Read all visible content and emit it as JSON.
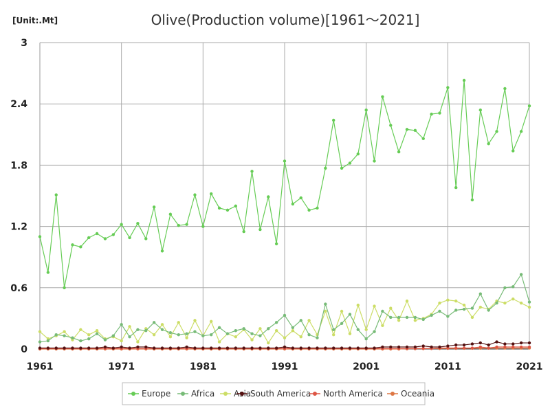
{
  "chart_data": {
    "type": "line",
    "title": "Olive(Production volume)[1961～2021]",
    "unit_label": "[Unit:.Mt]",
    "xlabel": "",
    "ylabel": "",
    "xlim": [
      1961,
      2021
    ],
    "ylim": [
      0,
      3
    ],
    "x_ticks": [
      "1961",
      "1971",
      "1981",
      "1991",
      "2001",
      "2011",
      "2021"
    ],
    "y_ticks": [
      "0",
      "0.6",
      "1.2",
      "1.8",
      "2.4",
      "3"
    ],
    "grid": true,
    "legend_position": "bottom",
    "x": [
      1961,
      1962,
      1963,
      1964,
      1965,
      1966,
      1967,
      1968,
      1969,
      1970,
      1971,
      1972,
      1973,
      1974,
      1975,
      1976,
      1977,
      1978,
      1979,
      1980,
      1981,
      1982,
      1983,
      1984,
      1985,
      1986,
      1987,
      1988,
      1989,
      1990,
      1991,
      1992,
      1993,
      1994,
      1995,
      1996,
      1997,
      1998,
      1999,
      2000,
      2001,
      2002,
      2003,
      2004,
      2005,
      2006,
      2007,
      2008,
      2009,
      2010,
      2011,
      2012,
      2013,
      2014,
      2015,
      2016,
      2017,
      2018,
      2019,
      2020,
      2021
    ],
    "series": [
      {
        "name": "Europe",
        "color": "#66cc55",
        "values": [
          1.1,
          0.75,
          1.51,
          0.6,
          1.02,
          1.0,
          1.09,
          1.13,
          1.08,
          1.12,
          1.22,
          1.09,
          1.23,
          1.08,
          1.39,
          0.96,
          1.32,
          1.21,
          1.22,
          1.51,
          1.2,
          1.52,
          1.38,
          1.36,
          1.4,
          1.15,
          1.74,
          1.17,
          1.49,
          1.03,
          1.84,
          1.42,
          1.48,
          1.36,
          1.38,
          1.77,
          2.24,
          1.77,
          1.82,
          1.91,
          2.34,
          1.84,
          2.47,
          2.19,
          1.93,
          2.15,
          2.14,
          2.06,
          2.3,
          2.31,
          2.56,
          1.58,
          2.63,
          1.46,
          2.34,
          2.01,
          2.13,
          2.55,
          1.94,
          2.13,
          2.38
        ]
      },
      {
        "name": "Africa",
        "color": "#77bb77",
        "values": [
          0.07,
          0.08,
          0.14,
          0.13,
          0.11,
          0.08,
          0.1,
          0.15,
          0.09,
          0.13,
          0.24,
          0.12,
          0.19,
          0.18,
          0.26,
          0.19,
          0.16,
          0.14,
          0.15,
          0.17,
          0.13,
          0.14,
          0.21,
          0.15,
          0.18,
          0.2,
          0.15,
          0.13,
          0.2,
          0.26,
          0.33,
          0.21,
          0.28,
          0.14,
          0.11,
          0.44,
          0.19,
          0.25,
          0.34,
          0.19,
          0.1,
          0.17,
          0.37,
          0.31,
          0.31,
          0.31,
          0.31,
          0.29,
          0.33,
          0.37,
          0.32,
          0.38,
          0.39,
          0.4,
          0.54,
          0.38,
          0.45,
          0.6,
          0.61,
          0.73,
          0.46
        ]
      },
      {
        "name": "Asia",
        "color": "#ccdd66",
        "values": [
          0.17,
          0.1,
          0.13,
          0.17,
          0.09,
          0.19,
          0.14,
          0.18,
          0.1,
          0.12,
          0.08,
          0.22,
          0.07,
          0.2,
          0.14,
          0.24,
          0.12,
          0.26,
          0.11,
          0.28,
          0.13,
          0.27,
          0.07,
          0.15,
          0.12,
          0.19,
          0.09,
          0.2,
          0.06,
          0.18,
          0.11,
          0.18,
          0.12,
          0.28,
          0.14,
          0.37,
          0.14,
          0.37,
          0.15,
          0.43,
          0.19,
          0.42,
          0.23,
          0.4,
          0.28,
          0.47,
          0.28,
          0.3,
          0.34,
          0.45,
          0.48,
          0.47,
          0.43,
          0.31,
          0.41,
          0.39,
          0.47,
          0.45,
          0.49,
          0.45,
          0.41
        ]
      },
      {
        "name": "South America",
        "color": "#551111",
        "values": [
          0.01,
          0.01,
          0.01,
          0.01,
          0.01,
          0.01,
          0.01,
          0.01,
          0.02,
          0.01,
          0.02,
          0.01,
          0.02,
          0.02,
          0.01,
          0.01,
          0.01,
          0.01,
          0.02,
          0.01,
          0.01,
          0.01,
          0.01,
          0.01,
          0.01,
          0.01,
          0.01,
          0.01,
          0.01,
          0.01,
          0.02,
          0.01,
          0.01,
          0.01,
          0.01,
          0.01,
          0.01,
          0.01,
          0.01,
          0.01,
          0.01,
          0.01,
          0.02,
          0.02,
          0.02,
          0.02,
          0.02,
          0.03,
          0.02,
          0.02,
          0.03,
          0.04,
          0.04,
          0.05,
          0.06,
          0.04,
          0.07,
          0.05,
          0.05,
          0.06,
          0.06
        ]
      },
      {
        "name": "North America",
        "color": "#dd5544",
        "values": [
          0.005,
          0.005,
          0.005,
          0.005,
          0.005,
          0.005,
          0.005,
          0.005,
          0.005,
          0.005,
          0.005,
          0.005,
          0.005,
          0.005,
          0.005,
          0.005,
          0.005,
          0.005,
          0.005,
          0.005,
          0.005,
          0.005,
          0.005,
          0.005,
          0.005,
          0.005,
          0.005,
          0.005,
          0.005,
          0.005,
          0.005,
          0.005,
          0.005,
          0.005,
          0.005,
          0.005,
          0.005,
          0.005,
          0.005,
          0.005,
          0.005,
          0.005,
          0.005,
          0.005,
          0.005,
          0.005,
          0.005,
          0.005,
          0.005,
          0.01,
          0.01,
          0.01,
          0.01,
          0.01,
          0.02,
          0.01,
          0.02,
          0.02,
          0.02,
          0.02,
          0.02
        ]
      },
      {
        "name": "Oceania",
        "color": "#dd7744",
        "values": [
          0,
          0,
          0,
          0,
          0,
          0,
          0,
          0,
          0,
          0,
          0,
          0,
          0,
          0,
          0,
          0,
          0,
          0,
          0,
          0,
          0,
          0,
          0,
          0,
          0,
          0,
          0,
          0,
          0,
          0,
          0,
          0,
          0,
          0,
          0,
          0,
          0,
          0,
          0,
          0,
          0,
          0,
          0,
          0,
          0,
          0.002,
          0.003,
          0.004,
          0.005,
          0.005,
          0.006,
          0.006,
          0.007,
          0.007,
          0.008,
          0.008,
          0.009,
          0.009,
          0.009,
          0.009,
          0.01
        ]
      }
    ]
  }
}
